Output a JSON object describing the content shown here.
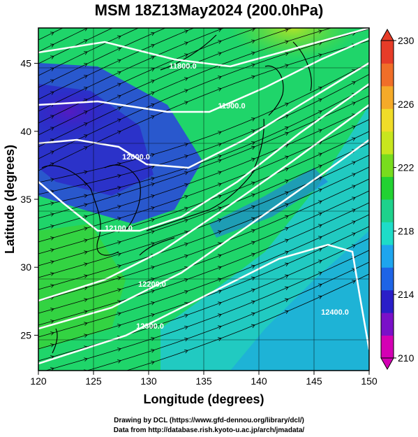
{
  "title": "MSM 18Z13May2024 (200.0hPa)",
  "x_axis": {
    "label": "Longitude (degrees)",
    "ticks": [
      "120",
      "125",
      "130",
      "135",
      "140",
      "145",
      "150"
    ],
    "range": [
      120,
      150
    ]
  },
  "y_axis": {
    "label": "Latitude  (degrees)",
    "ticks": [
      "25",
      "30",
      "35",
      "40",
      "45"
    ],
    "range": [
      22.4,
      47.6
    ]
  },
  "colorbar": {
    "ticks": [
      "230",
      "226",
      "222",
      "218",
      "214",
      "210"
    ],
    "range": [
      210,
      230
    ],
    "colors": [
      "#d400b4",
      "#7a10c8",
      "#2a1ec8",
      "#1e64e6",
      "#1ea5ee",
      "#1edcc8",
      "#1ed28c",
      "#22d232",
      "#78dc1e",
      "#c8e61e",
      "#f0dc28",
      "#f5aa28",
      "#f06e28",
      "#e63c28"
    ]
  },
  "contours": [
    {
      "label": "11800.0"
    },
    {
      "label": "11900.0"
    },
    {
      "label": "12000.0"
    },
    {
      "label": "12100.0"
    },
    {
      "label": "12200.0"
    },
    {
      "label": "12300.0"
    },
    {
      "label": "12400.0"
    }
  ],
  "footer": {
    "line1": "Drawing by DCL (https://www.gfd-dennou.org/library/dcl/)",
    "line2": "Data from http://database.rish.kyoto-u.ac.jp/arch/jmadata/"
  }
}
